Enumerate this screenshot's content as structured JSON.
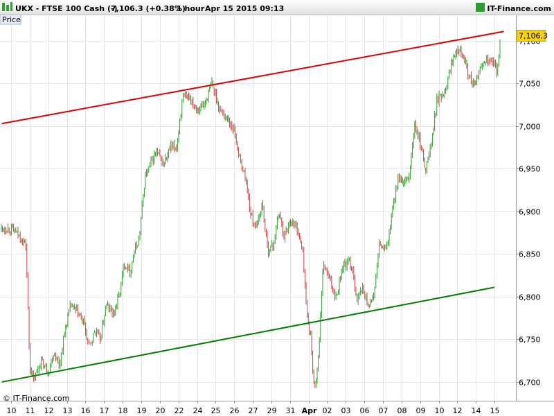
{
  "header": {
    "symbol": "UKX - FTSE 100 Cash (-)",
    "quote": "7,106.3 (+0.38%)",
    "interval": "1 hour",
    "datetime": "Apr 15 2015 09:13",
    "brand": "IT-Finance.com"
  },
  "panel_label": "Price",
  "copyright": "© IT-Finance.com",
  "colors": {
    "up": "#2ca02c",
    "down": "#c94040",
    "upper_trendline": "#e00000",
    "lower_trendline": "#008000",
    "price_tag": "#f5d20a"
  },
  "chart_data": {
    "type": "candlestick",
    "title": "UKX - FTSE 100 Cash (-)",
    "interval": "1 hour",
    "last_price": "7,106.3",
    "change_pct": "+0.38%",
    "y_ticks": [
      "7,100",
      "7,050",
      "7,000",
      "6,950",
      "6,900",
      "6,850",
      "6,800",
      "6,750",
      "6,700"
    ],
    "y_tick_values": [
      7100,
      7050,
      7000,
      6950,
      6900,
      6850,
      6800,
      6750,
      6700
    ],
    "ylim": [
      6678,
      7130
    ],
    "x_ticks": [
      "10",
      "11",
      "12",
      "13",
      "16",
      "17",
      "18",
      "19",
      "20",
      "22",
      "24",
      "25",
      "26",
      "27",
      "29",
      "31",
      "Apr",
      "02",
      "03",
      "06",
      "07",
      "08",
      "09",
      "10",
      "12",
      "14",
      "15"
    ],
    "x_tick_bold": [
      "Apr"
    ],
    "x_tick_index": [
      0,
      1,
      2,
      3,
      4,
      5,
      6,
      7,
      8,
      9,
      10,
      11,
      12,
      13,
      14,
      15,
      16,
      17,
      18,
      19,
      20,
      21,
      22,
      23,
      24,
      25,
      26
    ],
    "path_points": [
      [
        0,
        6880
      ],
      [
        0.5,
        6870
      ],
      [
        0.8,
        6860
      ],
      [
        1.0,
        6720
      ],
      [
        1.2,
        6700
      ],
      [
        1.6,
        6725
      ],
      [
        2.0,
        6712
      ],
      [
        2.3,
        6735
      ],
      [
        2.6,
        6720
      ],
      [
        2.9,
        6760
      ],
      [
        3.2,
        6790
      ],
      [
        3.6,
        6780
      ],
      [
        3.9,
        6770
      ],
      [
        4.2,
        6740
      ],
      [
        4.5,
        6760
      ],
      [
        4.8,
        6750
      ],
      [
        5.1,
        6790
      ],
      [
        5.5,
        6780
      ],
      [
        5.8,
        6800
      ],
      [
        6.1,
        6840
      ],
      [
        6.4,
        6830
      ],
      [
        6.6,
        6850
      ],
      [
        6.9,
        6870
      ],
      [
        7.2,
        6940
      ],
      [
        7.5,
        6955
      ],
      [
        7.8,
        6970
      ],
      [
        8.2,
        6955
      ],
      [
        8.6,
        6975
      ],
      [
        8.9,
        6975
      ],
      [
        9.2,
        7030
      ],
      [
        9.6,
        7035
      ],
      [
        10.0,
        7020
      ],
      [
        10.4,
        7025
      ],
      [
        10.8,
        7050
      ],
      [
        11.2,
        7020
      ],
      [
        11.6,
        7010
      ],
      [
        12.0,
        6995
      ],
      [
        12.3,
        6960
      ],
      [
        12.6,
        6940
      ],
      [
        12.9,
        6895
      ],
      [
        13.2,
        6880
      ],
      [
        13.5,
        6910
      ],
      [
        13.8,
        6855
      ],
      [
        14.1,
        6860
      ],
      [
        14.4,
        6900
      ],
      [
        14.7,
        6870
      ],
      [
        15.0,
        6890
      ],
      [
        15.4,
        6880
      ],
      [
        15.7,
        6850
      ],
      [
        15.9,
        6780
      ],
      [
        16.1,
        6755
      ],
      [
        16.3,
        6690
      ],
      [
        16.5,
        6720
      ],
      [
        16.8,
        6840
      ],
      [
        17.1,
        6820
      ],
      [
        17.5,
        6800
      ],
      [
        17.8,
        6835
      ],
      [
        18.2,
        6840
      ],
      [
        18.4,
        6830
      ],
      [
        18.6,
        6795
      ],
      [
        18.9,
        6810
      ],
      [
        19.2,
        6790
      ],
      [
        19.5,
        6800
      ],
      [
        19.8,
        6860
      ],
      [
        20.2,
        6855
      ],
      [
        20.5,
        6900
      ],
      [
        20.8,
        6940
      ],
      [
        21.1,
        6930
      ],
      [
        21.4,
        6940
      ],
      [
        21.7,
        7000
      ],
      [
        22.0,
        6980
      ],
      [
        22.3,
        6950
      ],
      [
        22.6,
        6980
      ],
      [
        22.9,
        7030
      ],
      [
        23.3,
        7040
      ],
      [
        23.7,
        7075
      ],
      [
        24.0,
        7095
      ],
      [
        24.3,
        7085
      ],
      [
        24.6,
        7060
      ],
      [
        24.9,
        7045
      ],
      [
        25.2,
        7065
      ],
      [
        25.5,
        7080
      ],
      [
        25.8,
        7075
      ],
      [
        26.0,
        7072
      ],
      [
        26.15,
        7060
      ],
      [
        26.3,
        7106
      ]
    ],
    "trendlines": [
      {
        "name": "upper",
        "points": [
          [
            -0.5,
            7003
          ],
          [
            26.5,
            7111
          ]
        ]
      },
      {
        "name": "lower",
        "points": [
          [
            -0.5,
            6700
          ],
          [
            26.0,
            6811
          ]
        ]
      }
    ],
    "grid": true
  }
}
